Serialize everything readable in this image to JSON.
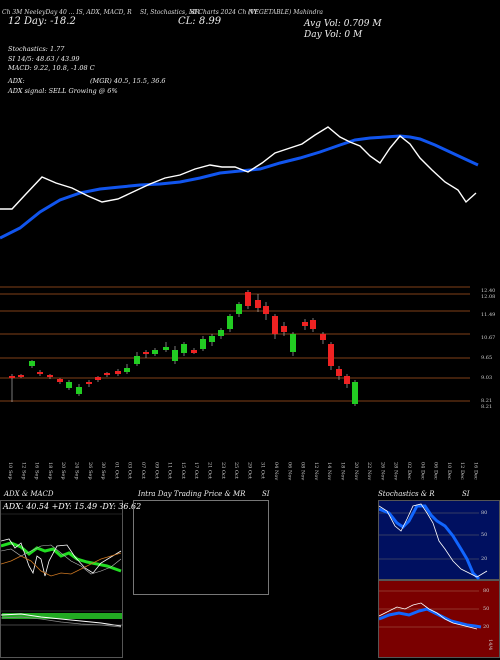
{
  "header": {
    "line1_left": "Ch 3M NeeleyDay 40 ... IS, ADX, MACD, R",
    "line1_mid": "SI, Stochastics, MR",
    "line1_mid2": "SI Charts 2024 Ch NY",
    "line1_right": "(VEGETABLE) Mahindra",
    "day": "Day: -18.2",
    "close": "CL: 8.99",
    "day_vol_label": "Day Vol: 0  M",
    "avg_vol_label": "Avg Vol: 0.709 M",
    "prefix": "12"
  },
  "info": {
    "stochastics": "Stochastics: 1.77",
    "si": "SI 14/5: 48.63 / 43.99",
    "macd": "MACD: 9.22, 10.8, -1.08  C",
    "adx": "ADX:",
    "adx_vals": "(MGR) 40.5,  15.5,  36.6",
    "adx_signal": "ADX  signal: SELL Growing @ 6%"
  },
  "price_axis": [
    "12.40",
    "12.08",
    "11.49",
    "10.67",
    "9.65",
    "9.03",
    "8.21",
    "8.21"
  ],
  "dates": [
    "10 Sep",
    "12 Sep",
    "16 Sep",
    "18 Sep",
    "20 Sep",
    "24 Sep",
    "26 Sep",
    "30 Sep",
    "01 Oct",
    "03 Oct",
    "07 Oct",
    "09 Oct",
    "11 Oct",
    "15 Oct",
    "17 Oct",
    "21 Oct",
    "23 Oct",
    "25 Oct",
    "29 Oct",
    "31 Oct",
    "04 Nov",
    "06 Nov",
    "08 Nov",
    "12 Nov",
    "14 Nov",
    "18 Nov",
    "20 Nov",
    "22 Nov",
    "26 Nov",
    "28 Nov",
    "02 Dec",
    "04 Dec",
    "06 Dec",
    "10 Dec",
    "12 Dec",
    "16 Dec"
  ],
  "panels": {
    "adx_title": "ADX  & MACD",
    "adx_legend": "ADX: 40.54  +DY: 15.49  -DY: 36.62",
    "intra_title": "Intra  Day Trading Price  & MR",
    "intra_title2": "SI",
    "stoch_title": "Stochastics & R",
    "stoch_title2": "SI",
    "stoch_ticks": [
      "80",
      "50",
      "20"
    ],
    "rsi_ticks": [
      "80",
      "50",
      "20",
      "14/4"
    ]
  },
  "colors": {
    "up_candle": "#22cc22",
    "down_candle": "#ee2222",
    "ema_blue": "#1155ee",
    "orange_grid": "#aa5522"
  }
}
